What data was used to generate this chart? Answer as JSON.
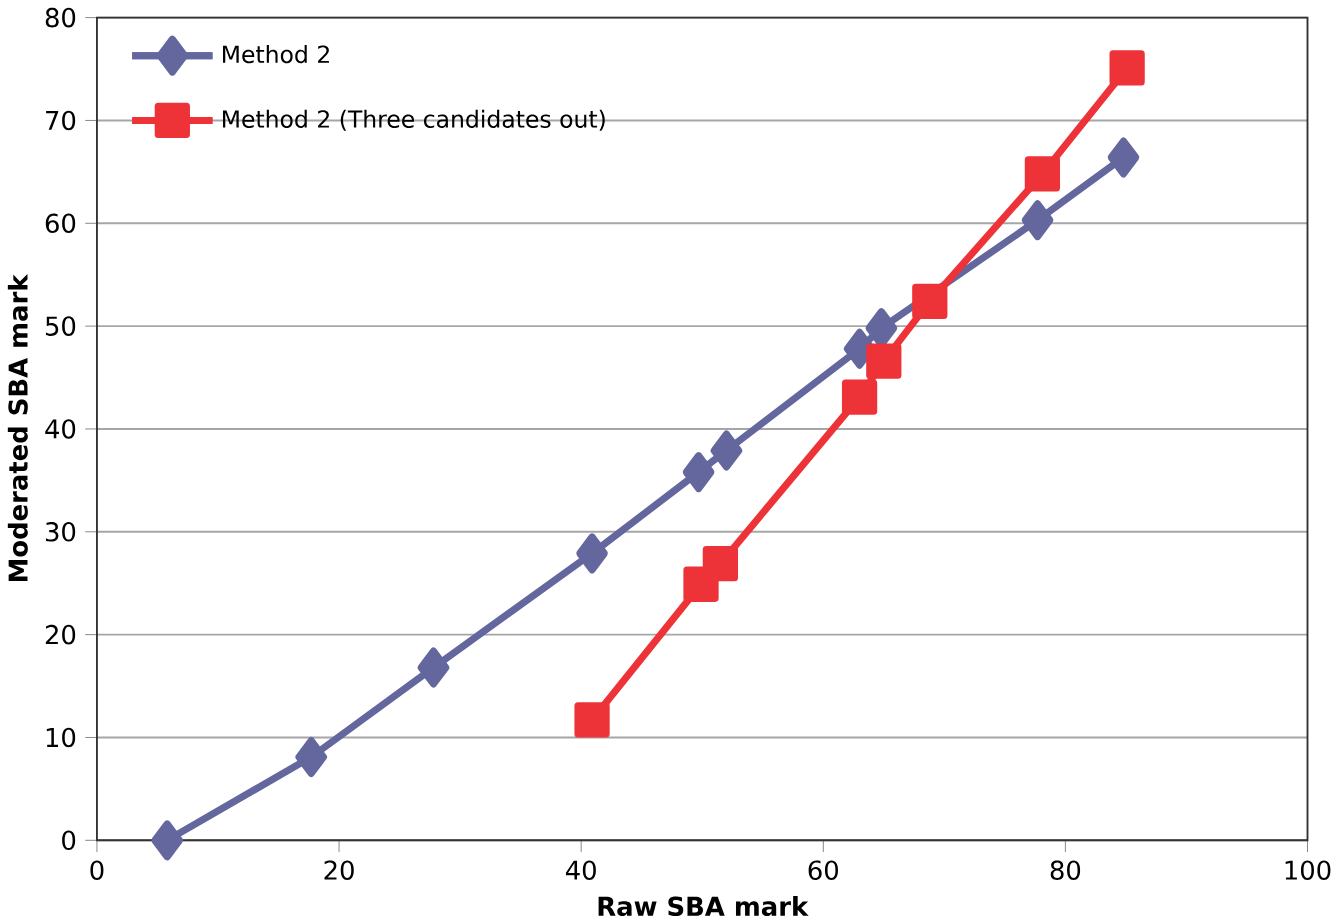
{
  "chart_data": {
    "type": "line",
    "xlabel": "Raw SBA mark",
    "ylabel": "Moderated SBA mark",
    "xlim": [
      0,
      100
    ],
    "xticks": [
      0,
      20,
      40,
      60,
      80,
      100
    ],
    "ylim": [
      0,
      80
    ],
    "yticks": [
      0,
      10,
      20,
      30,
      40,
      50,
      60,
      70,
      80
    ],
    "grid": "y",
    "legend": "top left",
    "series": [
      {
        "name": "Method 2",
        "color": "#63679e",
        "marker": "diamond",
        "x": [
          5.8,
          17.7,
          27.8,
          40.9,
          49.7,
          52.0,
          63.0,
          64.8,
          68.8,
          77.7,
          84.8
        ],
        "values": [
          0,
          8.1,
          16.8,
          27.9,
          35.8,
          37.9,
          47.8,
          49.8,
          null,
          60.3,
          66.4
        ]
      },
      {
        "name": "Method 2 (Three candidates out)",
        "color": "#ee3338",
        "marker": "square",
        "x": [
          40.9,
          49.9,
          51.5,
          63.0,
          65.0,
          68.8,
          78.1,
          85.1
        ],
        "values": [
          11.7,
          24.9,
          26.9,
          43.1,
          46.6,
          52.4,
          64.8,
          75.1
        ]
      }
    ]
  }
}
